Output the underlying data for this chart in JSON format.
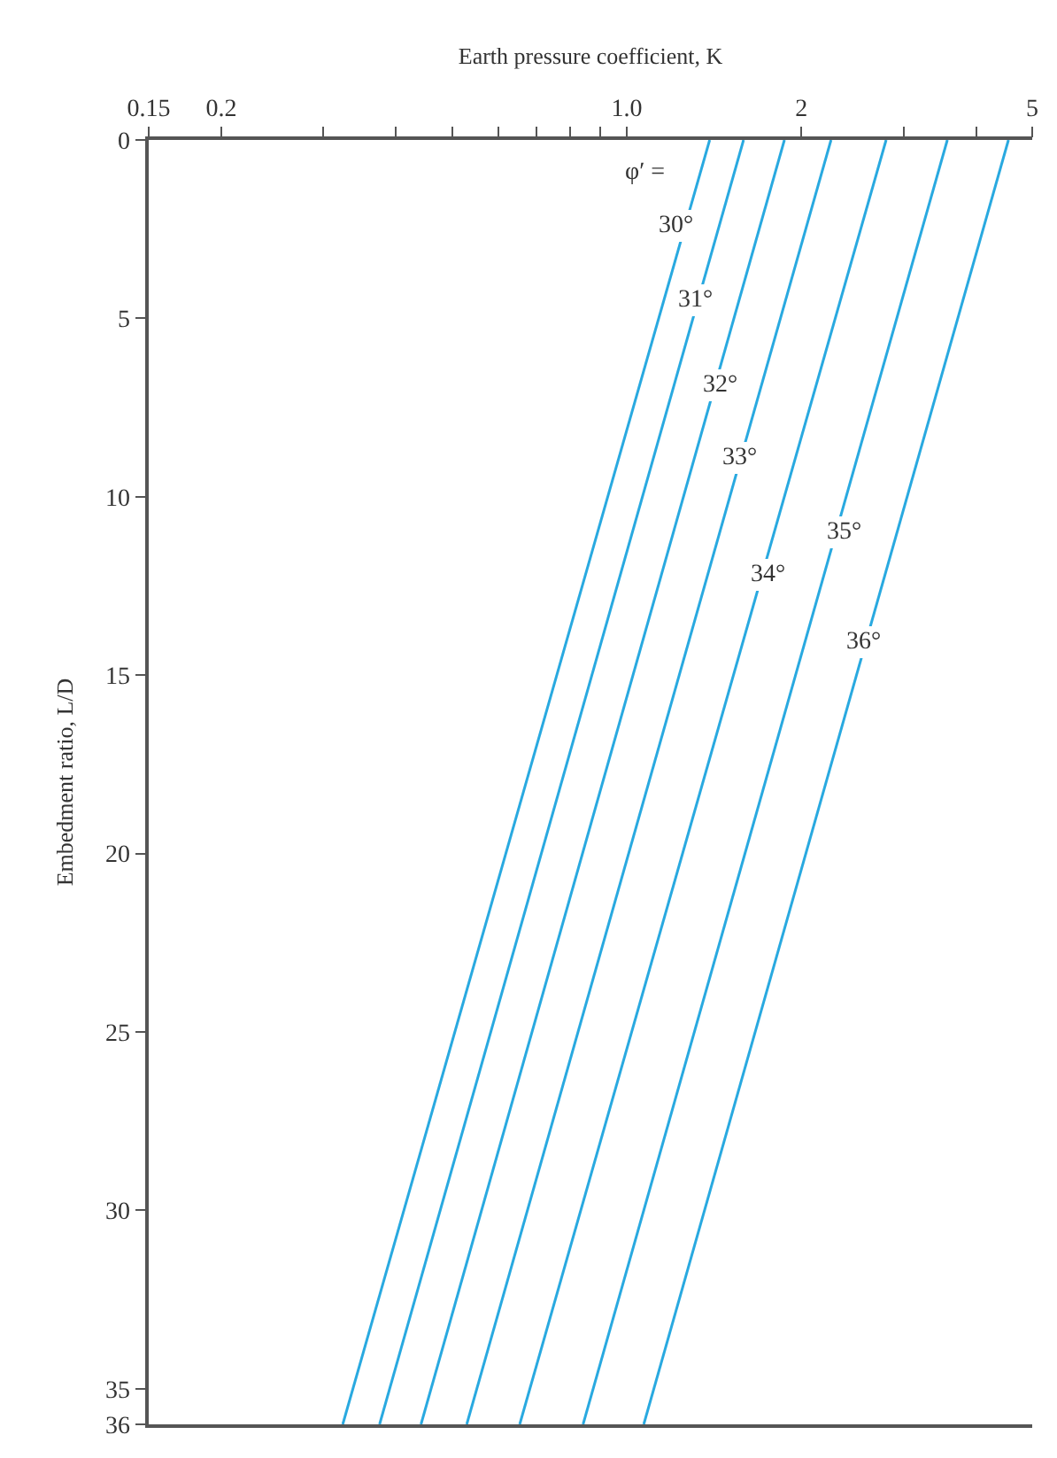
{
  "chart_data": {
    "type": "line",
    "xlabel": "Earth pressure coefficient, K",
    "ylabel": "Embedment ratio, L/D",
    "log": "x",
    "marker": "none",
    "line_style": "solid",
    "xlim": [
      0.15,
      5
    ],
    "xticks": [
      0.15,
      0.2,
      {
        "value": 0.3,
        "label": null
      },
      {
        "value": 0.4,
        "label": null
      },
      {
        "value": 0.5,
        "label": null
      },
      {
        "value": 0.6,
        "label": null
      },
      {
        "value": 0.7,
        "label": null
      },
      {
        "value": 0.8,
        "label": null
      },
      {
        "value": 0.9,
        "label": null
      },
      {
        "value": 1,
        "label": "1.0"
      },
      2,
      {
        "value": 3,
        "label": null
      },
      {
        "value": 4,
        "label": null
      },
      5
    ],
    "ylim": [
      36,
      0
    ],
    "yticks": [
      0,
      5,
      10,
      15,
      20,
      25,
      30,
      35,
      36
    ],
    "series": [
      {
        "color": "#29a9e0",
        "x": [
          1.39,
          0.324
        ],
        "values": [
          0,
          36
        ]
      },
      {
        "color": "#29a9e0",
        "x": [
          1.59,
          0.375
        ],
        "values": [
          0,
          36
        ]
      },
      {
        "color": "#29a9e0",
        "x": [
          1.87,
          0.442
        ],
        "values": [
          0,
          36
        ]
      },
      {
        "color": "#29a9e0",
        "x": [
          2.25,
          0.53
        ],
        "values": [
          0,
          36
        ]
      },
      {
        "color": "#29a9e0",
        "x": [
          2.8,
          0.654
        ],
        "values": [
          0,
          36
        ]
      },
      {
        "color": "#29a9e0",
        "x": [
          3.57,
          0.841
        ],
        "values": [
          0,
          36
        ]
      },
      {
        "color": "#29a9e0",
        "x": [
          4.55,
          1.07
        ],
        "values": [
          0,
          36
        ]
      }
    ],
    "annotations": [
      {
        "text": "φ′ =",
        "x": 1.08,
        "y": 0.9
      },
      {
        "text": "30°",
        "x": 1.22,
        "y": 2.4
      },
      {
        "text": "31°",
        "x": 1.32,
        "y": 4.5
      },
      {
        "text": "32°",
        "x": 1.45,
        "y": 6.9
      },
      {
        "text": "33°",
        "x": 1.57,
        "y": 8.9
      },
      {
        "text": "34°",
        "x": 1.75,
        "y": 12.2
      },
      {
        "text": "35°",
        "x": 2.38,
        "y": 11.0
      },
      {
        "text": "36°",
        "x": 2.57,
        "y": 14.1
      }
    ]
  }
}
